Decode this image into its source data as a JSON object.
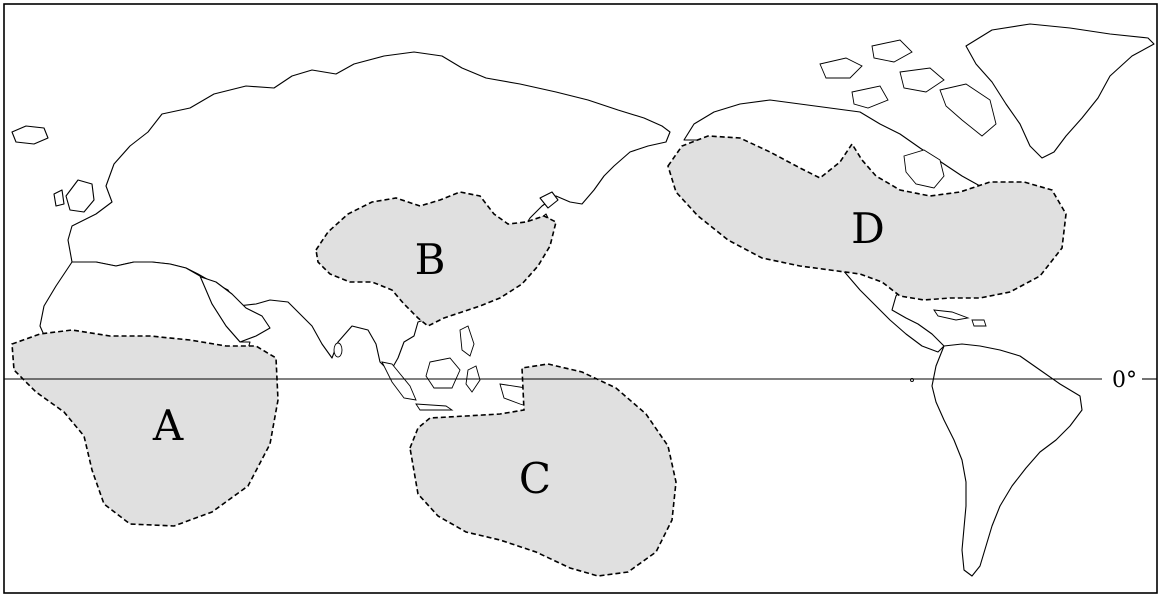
{
  "map": {
    "regions": [
      {
        "id": "A",
        "label": "A"
      },
      {
        "id": "B",
        "label": "B"
      },
      {
        "id": "C",
        "label": "C"
      },
      {
        "id": "D",
        "label": "D"
      }
    ],
    "equator_label": "0°",
    "colors": {
      "region_fill": "#e0e0e0",
      "land_fill": "#ffffff",
      "line": "#000000",
      "background": "#ffffff"
    }
  }
}
